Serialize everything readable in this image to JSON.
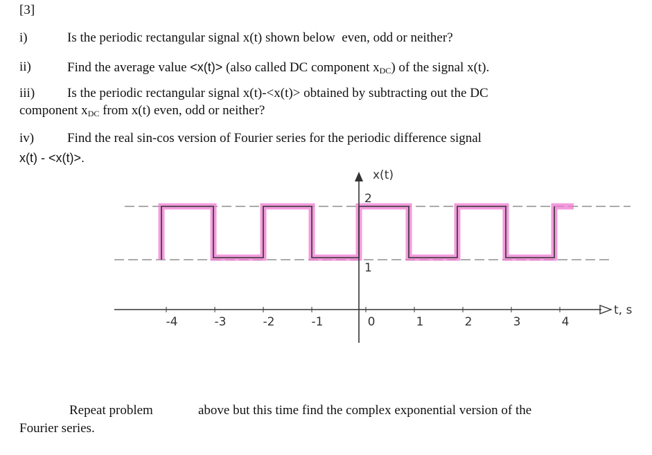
{
  "problem_number": "[3]",
  "items": [
    {
      "label": "i)",
      "parts": [
        "Is the periodic rectangular signal x(t) shown below  even, odd or neither?"
      ]
    },
    {
      "label": "ii)",
      "parts": [
        "Find the average value ",
        "<x(t)>",
        " (also called DC component x",
        "DC",
        ") of the signal x(t)."
      ]
    },
    {
      "label": "iii)",
      "parts": [
        "Is the periodic rectangular signal x(t)-<x(t)> obtained by subtracting out the DC",
        "component x",
        "DC",
        " from x(t) even, odd or neither?"
      ]
    },
    {
      "label": "iv)",
      "parts": [
        "Find the real sin-cos version of Fourier series for the periodic difference signal",
        "x(t) - <x(t)>."
      ]
    }
  ],
  "figure": {
    "y_axis_label": "x(t)",
    "x_axis_label": "t, s",
    "level_labels": [
      "2",
      "1"
    ],
    "x_tick_labels": [
      "-4",
      "-3",
      "-2",
      "-1",
      "0",
      "1",
      "2",
      "3",
      "4"
    ]
  },
  "footer": {
    "line1_a": "Repeat problem",
    "line1_b": "above but this time find the complex exponential version of the",
    "line2": "Fourier series."
  }
}
